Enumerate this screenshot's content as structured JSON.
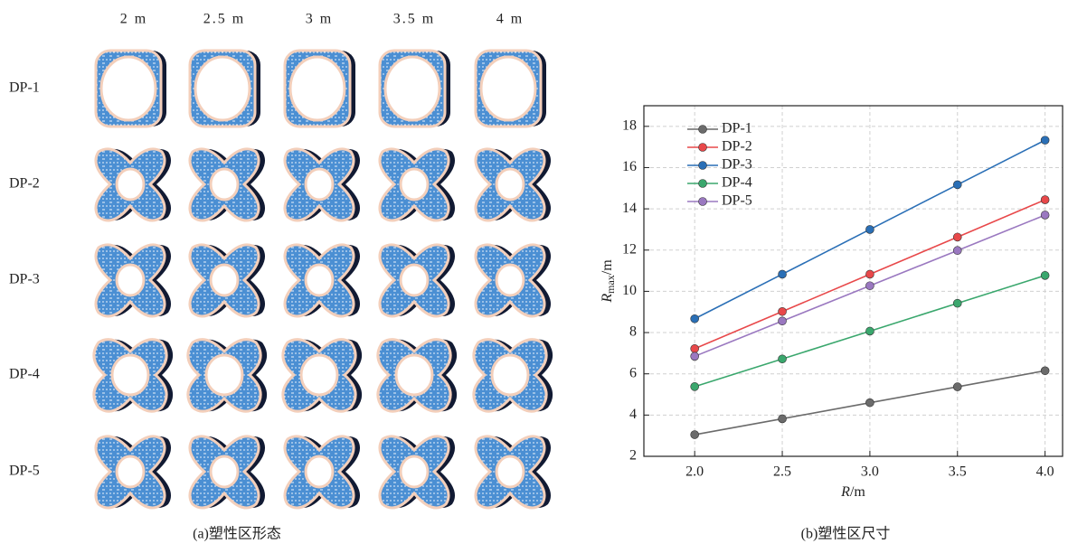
{
  "figure_a": {
    "columns": [
      "2 m",
      "2.5 m",
      "3 m",
      "3.5 m",
      "4 m"
    ],
    "rows": [
      "DP-1",
      "DP-2",
      "DP-3",
      "DP-4",
      "DP-5"
    ],
    "caption": "(a)塑性区形态"
  },
  "chart_data": {
    "type": "line",
    "caption": "(b)塑性区尺寸",
    "xlabel_parts": [
      "R",
      "/m"
    ],
    "ylabel_parts": [
      "R",
      "max",
      "/m"
    ],
    "x": [
      2.0,
      2.5,
      3.0,
      3.5,
      4.0
    ],
    "series": [
      {
        "name": "DP-1",
        "color": "#6b6b6b",
        "values": [
          3.05,
          3.82,
          4.6,
          5.37,
          6.15
        ]
      },
      {
        "name": "DP-2",
        "color": "#e8484a",
        "values": [
          7.22,
          9.02,
          10.83,
          12.63,
          14.44
        ]
      },
      {
        "name": "DP-3",
        "color": "#2a6fb6",
        "values": [
          8.67,
          10.83,
          13.0,
          15.17,
          17.33
        ]
      },
      {
        "name": "DP-4",
        "color": "#3aa76d",
        "values": [
          5.38,
          6.72,
          8.07,
          9.42,
          10.77
        ]
      },
      {
        "name": "DP-5",
        "color": "#9a78c0",
        "values": [
          6.85,
          8.56,
          10.27,
          11.98,
          13.7
        ]
      }
    ],
    "xlim": [
      1.71,
      4.1
    ],
    "xticks": [
      {
        "value": 2,
        "label": "2.0"
      },
      {
        "value": 2.5,
        "label": "2.5"
      },
      {
        "value": 3,
        "label": "3.0"
      },
      {
        "value": 3.5,
        "label": "3.5"
      },
      {
        "value": 4,
        "label": "4.0"
      }
    ],
    "ylim": [
      2,
      19
    ],
    "yticks": [
      2,
      4,
      6,
      8,
      10,
      12,
      14,
      16,
      18
    ],
    "grid": true,
    "legend": "upper-left"
  }
}
